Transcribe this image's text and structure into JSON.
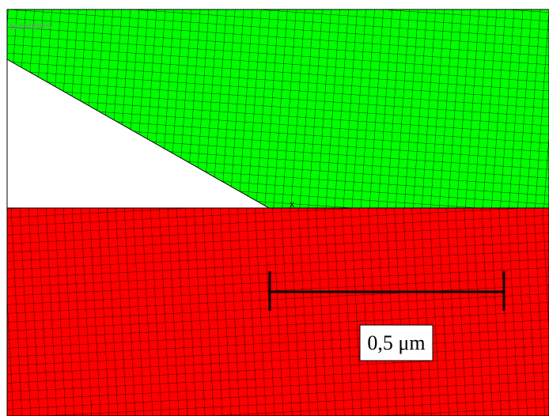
{
  "label": "ELEMENTS",
  "origin_label": "X",
  "scale_bar": {
    "label": "0,5 μm"
  }
}
